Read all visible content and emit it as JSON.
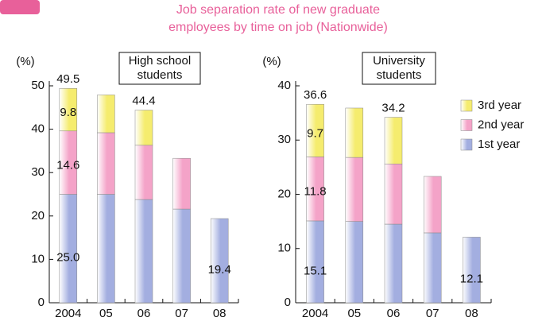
{
  "title_lines": [
    "Job separation rate of new graduate",
    "employees by time on job (Nationwide)"
  ],
  "chart_data": [
    {
      "type": "stacked_bar",
      "label_lines": [
        "High school",
        "students"
      ],
      "y_label": "(%)",
      "categories": [
        "2004",
        "05",
        "06",
        "07",
        "08"
      ],
      "ylim": [
        0,
        50
      ],
      "yticks": [
        0,
        10,
        20,
        30,
        40,
        50
      ],
      "series": [
        {
          "name": "1st year",
          "color": "#a3aee0",
          "values": [
            25.0,
            25.0,
            23.8,
            21.6,
            19.4
          ],
          "value_labels": [
            "25.0",
            null,
            null,
            null,
            "19.4"
          ]
        },
        {
          "name": "2nd year",
          "color": "#f4a3c8",
          "values": [
            14.6,
            14.2,
            12.5,
            11.7,
            null
          ],
          "value_labels": [
            "14.6",
            null,
            null,
            null,
            null
          ]
        },
        {
          "name": "3rd year",
          "color": "#f5ec6e",
          "values": [
            9.8,
            8.7,
            8.1,
            null,
            null
          ],
          "value_labels": [
            "9.8",
            null,
            null,
            null,
            null
          ]
        }
      ],
      "totals": [
        49.5,
        null,
        44.4,
        null,
        null
      ]
    },
    {
      "type": "stacked_bar",
      "label_lines": [
        "University",
        "students"
      ],
      "y_label": "(%)",
      "categories": [
        "2004",
        "05",
        "06",
        "07",
        "08"
      ],
      "ylim": [
        0,
        40
      ],
      "yticks": [
        0,
        10,
        20,
        30,
        40
      ],
      "legend": "upper right",
      "series": [
        {
          "name": "1st year",
          "color": "#a3aee0",
          "values": [
            15.1,
            15.0,
            14.5,
            12.9,
            12.1
          ],
          "value_labels": [
            "15.1",
            null,
            null,
            null,
            "12.1"
          ]
        },
        {
          "name": "2nd year",
          "color": "#f4a3c8",
          "values": [
            11.8,
            11.8,
            11.1,
            10.4,
            null
          ],
          "value_labels": [
            "11.8",
            null,
            null,
            null,
            null
          ]
        },
        {
          "name": "3rd year",
          "color": "#f5ec6e",
          "values": [
            9.7,
            9.1,
            8.6,
            null,
            null
          ],
          "value_labels": [
            "9.7",
            null,
            null,
            null,
            null
          ]
        }
      ],
      "totals": [
        36.6,
        null,
        34.2,
        null,
        null
      ]
    }
  ]
}
